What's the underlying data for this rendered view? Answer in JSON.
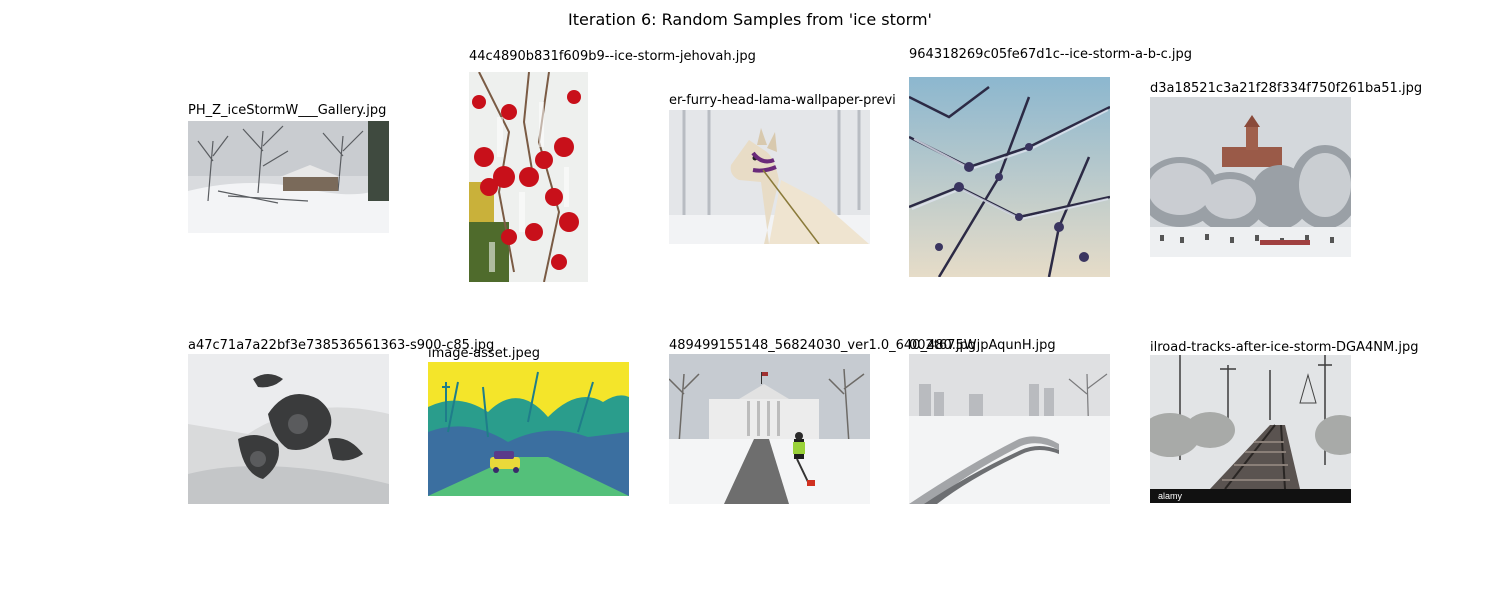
{
  "figure": {
    "title": "Iteration 6: Random Samples from 'ice storm'"
  },
  "samples": [
    {
      "filename": "PH_Z_iceStormW___Gallery.jpg",
      "depicts": "snowy yard with ice-covered trees and houses"
    },
    {
      "filename": "44c4890b831f609b9--ice-storm-jehovah.jpg",
      "depicts": "red berries encased in ice"
    },
    {
      "filename": "er-furry-head-lama-wallpaper-previ",
      "depicts": "llama with purple halter in snowy forest"
    },
    {
      "filename": "964318269c05fe67d1c--ice-storm-a-b-c.jpg",
      "depicts": "ice-coated branches against blue sky"
    },
    {
      "filename": "d3a18521c3a21f28f334f750f261ba51.jpg",
      "depicts": "frosted trees with courthouse and cemetery"
    },
    {
      "filename": "a47c71a7a22bf3e738536561363-s900-c85.jpg",
      "depicts": "dark debris pile on snow and ice"
    },
    {
      "filename": "image-asset.jpeg",
      "depicts": "false-color image of car under ice-laden trees"
    },
    {
      "filename": "489499155148_56824030_ver1.0_640_480.jpg",
      "depicts": "person shoveling snow in front of White House"
    },
    {
      "filename": "002t675WjpAqunH.jpg",
      "depicts": "snowy park bridge with city skyline in fog"
    },
    {
      "filename": "ilroad-tracks-after-ice-storm-DGA4NM.jpg",
      "depicts": "railroad tracks with ice-covered trees"
    }
  ],
  "watermarks": {
    "alamy": "alamy"
  }
}
